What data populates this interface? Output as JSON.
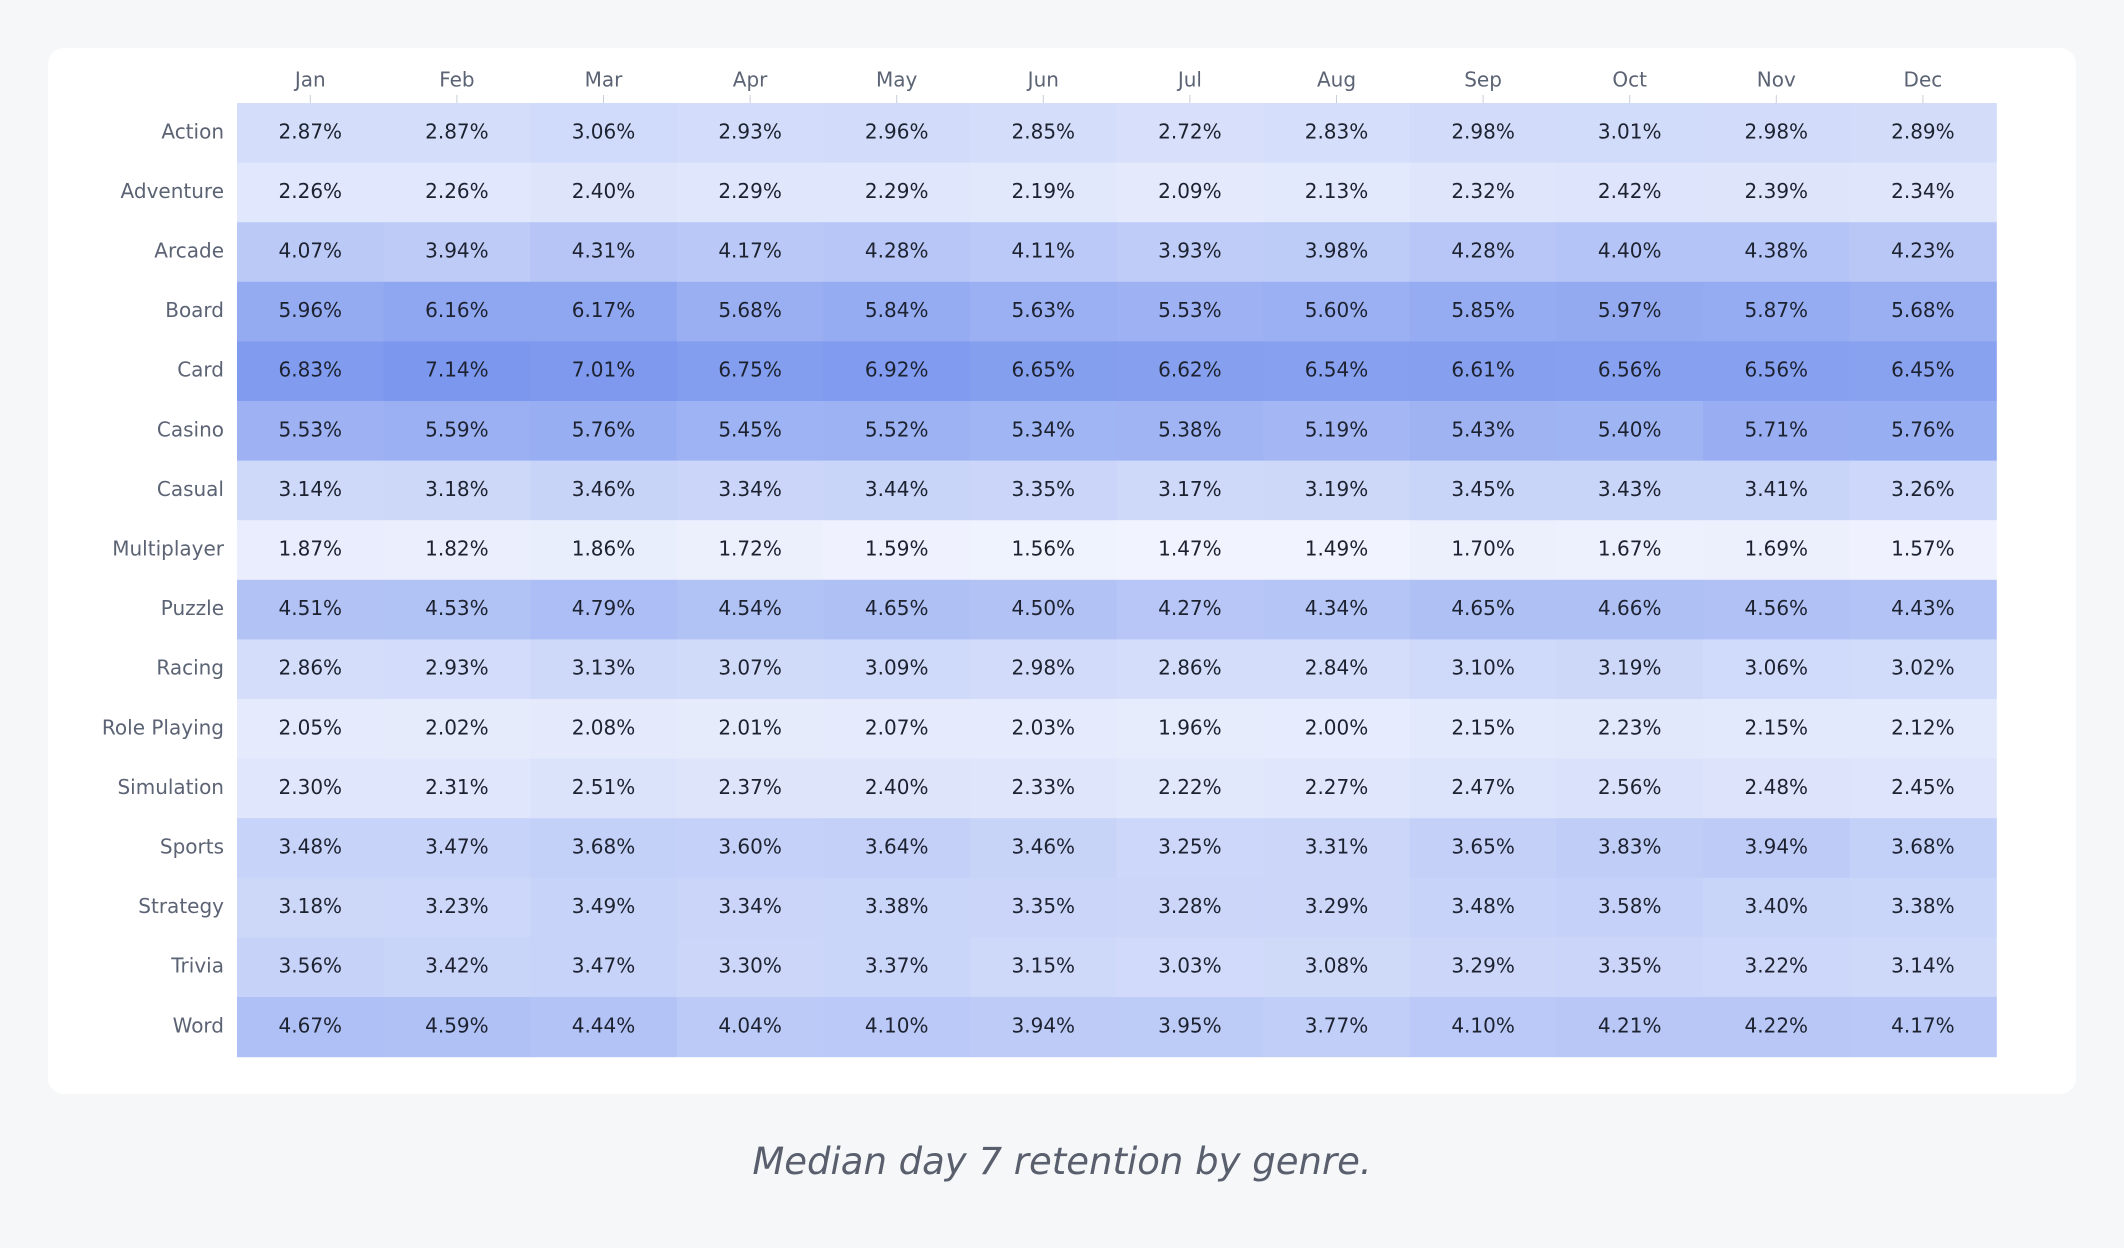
{
  "caption": "Median day 7 retention by genre.",
  "colors": {
    "background": "#f6f7f9",
    "card": "#ffffff",
    "cell_low": "#f1f4fe",
    "cell_high": "#7b97ee",
    "text": "#1d2230",
    "label": "#5b6374"
  },
  "chart_data": {
    "type": "heatmap",
    "title": "",
    "value_format": "percent",
    "x": [
      "Jan",
      "Feb",
      "Mar",
      "Apr",
      "May",
      "Jun",
      "Jul",
      "Aug",
      "Sep",
      "Oct",
      "Nov",
      "Dec"
    ],
    "y": [
      "Action",
      "Adventure",
      "Arcade",
      "Board",
      "Card",
      "Casino",
      "Casual",
      "Multiplayer",
      "Puzzle",
      "Racing",
      "Role Playing",
      "Simulation",
      "Sports",
      "Strategy",
      "Trivia",
      "Word"
    ],
    "values": [
      [
        2.87,
        2.87,
        3.06,
        2.93,
        2.96,
        2.85,
        2.72,
        2.83,
        2.98,
        3.01,
        2.98,
        2.89
      ],
      [
        2.26,
        2.26,
        2.4,
        2.29,
        2.29,
        2.19,
        2.09,
        2.13,
        2.32,
        2.42,
        2.39,
        2.34
      ],
      [
        4.07,
        3.94,
        4.31,
        4.17,
        4.28,
        4.11,
        3.93,
        3.98,
        4.28,
        4.4,
        4.38,
        4.23
      ],
      [
        5.96,
        6.16,
        6.17,
        5.68,
        5.84,
        5.63,
        5.53,
        5.6,
        5.85,
        5.97,
        5.87,
        5.68
      ],
      [
        6.83,
        7.14,
        7.01,
        6.75,
        6.92,
        6.65,
        6.62,
        6.54,
        6.61,
        6.56,
        6.56,
        6.45
      ],
      [
        5.53,
        5.59,
        5.76,
        5.45,
        5.52,
        5.34,
        5.38,
        5.19,
        5.43,
        5.4,
        5.71,
        5.76
      ],
      [
        3.14,
        3.18,
        3.46,
        3.34,
        3.44,
        3.35,
        3.17,
        3.19,
        3.45,
        3.43,
        3.41,
        3.26
      ],
      [
        1.87,
        1.82,
        1.86,
        1.72,
        1.59,
        1.56,
        1.47,
        1.49,
        1.7,
        1.67,
        1.69,
        1.57
      ],
      [
        4.51,
        4.53,
        4.79,
        4.54,
        4.65,
        4.5,
        4.27,
        4.34,
        4.65,
        4.66,
        4.56,
        4.43
      ],
      [
        2.86,
        2.93,
        3.13,
        3.07,
        3.09,
        2.98,
        2.86,
        2.84,
        3.1,
        3.19,
        3.06,
        3.02
      ],
      [
        2.05,
        2.02,
        2.08,
        2.01,
        2.07,
        2.03,
        1.96,
        2.0,
        2.15,
        2.23,
        2.15,
        2.12
      ],
      [
        2.3,
        2.31,
        2.51,
        2.37,
        2.4,
        2.33,
        2.22,
        2.27,
        2.47,
        2.56,
        2.48,
        2.45
      ],
      [
        3.48,
        3.47,
        3.68,
        3.6,
        3.64,
        3.46,
        3.25,
        3.31,
        3.65,
        3.83,
        3.94,
        3.68
      ],
      [
        3.18,
        3.23,
        3.49,
        3.34,
        3.38,
        3.35,
        3.28,
        3.29,
        3.48,
        3.58,
        3.4,
        3.38
      ],
      [
        3.56,
        3.42,
        3.47,
        3.3,
        3.37,
        3.15,
        3.03,
        3.08,
        3.29,
        3.35,
        3.22,
        3.14
      ],
      [
        4.67,
        4.59,
        4.44,
        4.04,
        4.1,
        3.94,
        3.95,
        3.77,
        4.1,
        4.21,
        4.22,
        4.17
      ]
    ]
  }
}
